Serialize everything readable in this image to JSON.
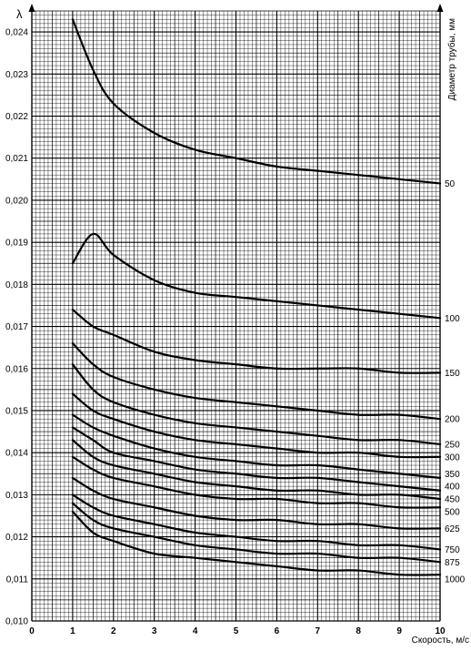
{
  "chart_data": {
    "type": "line",
    "ylabel": "λ",
    "xlabel": "Скорость, м/с",
    "legend_title": "Диаметр трубы, мм",
    "xlim": [
      0,
      10
    ],
    "ylim": [
      0.01,
      0.0245
    ],
    "x_ticks": [
      "0",
      "1",
      "2",
      "3",
      "4",
      "5",
      "6",
      "7",
      "8",
      "9",
      "10"
    ],
    "y_ticks": [
      "0,010",
      "0,011",
      "0,012",
      "0,013",
      "0,014",
      "0,015",
      "0,016",
      "0,017",
      "0,018",
      "0,019",
      "0,020",
      "0,021",
      "0,022",
      "0,023",
      "0,024"
    ],
    "grid": "fine millimetre grid",
    "x": [
      1,
      1.5,
      2,
      3,
      4,
      5,
      6,
      7,
      8,
      9,
      10
    ],
    "series": [
      {
        "name": "50",
        "values": [
          0.0243,
          0.0231,
          0.0223,
          0.0216,
          0.0212,
          0.021,
          0.0208,
          0.0207,
          0.0206,
          0.0205,
          0.0204
        ]
      },
      {
        "name": "100",
        "values": [
          0.0185,
          0.0192,
          0.0187,
          0.0181,
          0.0178,
          0.0177,
          0.0176,
          0.0175,
          0.0174,
          0.0173,
          0.0172
        ]
      },
      {
        "name": "150",
        "values": [
          0.0174,
          0.017,
          0.0168,
          0.0164,
          0.0162,
          0.0161,
          0.016,
          0.016,
          0.016,
          0.0159,
          0.0159
        ]
      },
      {
        "name": "200",
        "values": [
          0.0166,
          0.0161,
          0.0158,
          0.0155,
          0.0153,
          0.0152,
          0.0151,
          0.015,
          0.0149,
          0.0149,
          0.0148
        ]
      },
      {
        "name": "250",
        "values": [
          0.0161,
          0.0155,
          0.0152,
          0.0149,
          0.0147,
          0.0146,
          0.0145,
          0.0144,
          0.0143,
          0.0143,
          0.0142
        ]
      },
      {
        "name": "300",
        "values": [
          0.0154,
          0.015,
          0.0148,
          0.0145,
          0.0143,
          0.0142,
          0.0141,
          0.014,
          0.014,
          0.0139,
          0.0139
        ]
      },
      {
        "name": "350",
        "values": [
          0.0149,
          0.0146,
          0.0144,
          0.0141,
          0.0139,
          0.0138,
          0.0137,
          0.0137,
          0.0136,
          0.0135,
          0.0134
        ]
      },
      {
        "name": "400",
        "values": [
          0.0146,
          0.0143,
          0.014,
          0.0138,
          0.0136,
          0.0135,
          0.0134,
          0.0134,
          0.0133,
          0.0132,
          0.0131
        ]
      },
      {
        "name": "450",
        "values": [
          0.0143,
          0.0139,
          0.0137,
          0.0135,
          0.0133,
          0.0132,
          0.0131,
          0.0131,
          0.013,
          0.013,
          0.0129
        ]
      },
      {
        "name": "500",
        "values": [
          0.0139,
          0.0136,
          0.0134,
          0.0132,
          0.013,
          0.0129,
          0.0129,
          0.0128,
          0.0128,
          0.0127,
          0.0127
        ]
      },
      {
        "name": "625",
        "values": [
          0.0134,
          0.0131,
          0.0129,
          0.0127,
          0.0125,
          0.0124,
          0.0124,
          0.0123,
          0.0123,
          0.0122,
          0.0122
        ]
      },
      {
        "name": "750",
        "values": [
          0.013,
          0.0127,
          0.0125,
          0.0123,
          0.0121,
          0.012,
          0.0119,
          0.0119,
          0.0118,
          0.0118,
          0.0117
        ]
      },
      {
        "name": "875",
        "values": [
          0.0128,
          0.0124,
          0.0122,
          0.012,
          0.0118,
          0.0117,
          0.0116,
          0.0116,
          0.0115,
          0.0115,
          0.0114
        ]
      },
      {
        "name": "1000",
        "values": [
          0.0126,
          0.0121,
          0.0119,
          0.0116,
          0.0115,
          0.0114,
          0.0113,
          0.0112,
          0.0112,
          0.0111,
          0.0111
        ]
      }
    ],
    "series_label_y": {
      "50": 0.0204,
      "100": 0.0172,
      "150": 0.0159,
      "200": 0.0148,
      "250": 0.0142,
      "300": 0.0139,
      "350": 0.0135,
      "400": 0.0132,
      "450": 0.0129,
      "500": 0.0126,
      "625": 0.0122,
      "750": 0.0117,
      "875": 0.0114,
      "1000": 0.011
    }
  }
}
